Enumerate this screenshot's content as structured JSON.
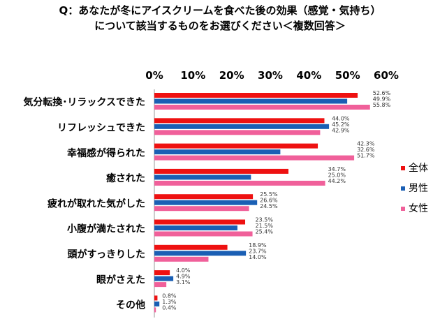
{
  "chart_data": {
    "type": "bar",
    "orientation": "horizontal",
    "title_line1": "Q：あなたが冬にアイスクリームを食べた後の効果（感覚・気持ち）",
    "title_line2": "について該当するものをお選びください＜複数回答＞",
    "categories": [
      "気分転換･リラックスできた",
      "リフレッシュできた",
      "幸福感が得られた",
      "癒された",
      "疲れが取れた気がした",
      "小腹が満たされた",
      "頭がすっきりした",
      "眼がさえた",
      "その他"
    ],
    "series": [
      {
        "name": "全体",
        "color": "#ee1111",
        "values": [
          52.6,
          44.0,
          42.3,
          34.7,
          25.5,
          23.5,
          18.9,
          4.0,
          0.8
        ],
        "labels": [
          "52.6%",
          "44.0%",
          "42.3%",
          "34.7%",
          "25.5%",
          "23.5%",
          "18.9%",
          "4.0%",
          "0.8%"
        ]
      },
      {
        "name": "男性",
        "color": "#1a5fb4",
        "values": [
          49.9,
          45.2,
          32.6,
          25.0,
          26.6,
          21.5,
          23.7,
          4.9,
          1.3
        ],
        "labels": [
          "49.9%",
          "45.2%",
          "32.6%",
          "25.0%",
          "26.6%",
          "21.5%",
          "23.7%",
          "4.9%",
          "1.3%"
        ]
      },
      {
        "name": "女性",
        "color": "#f0609a",
        "values": [
          55.8,
          42.9,
          51.7,
          44.2,
          24.5,
          25.4,
          14.0,
          3.1,
          0.4
        ],
        "labels": [
          "55.8%",
          "42.9%",
          "51.7%",
          "44.2%",
          "24.5%",
          "25.4%",
          "14.0%",
          "3.1%",
          "0.4%"
        ]
      }
    ],
    "xlim": [
      0,
      60
    ],
    "xticks": [
      "0%",
      "10%",
      "20%",
      "30%",
      "40%",
      "50%",
      "60%"
    ],
    "grid": false,
    "legend_position": "right"
  }
}
